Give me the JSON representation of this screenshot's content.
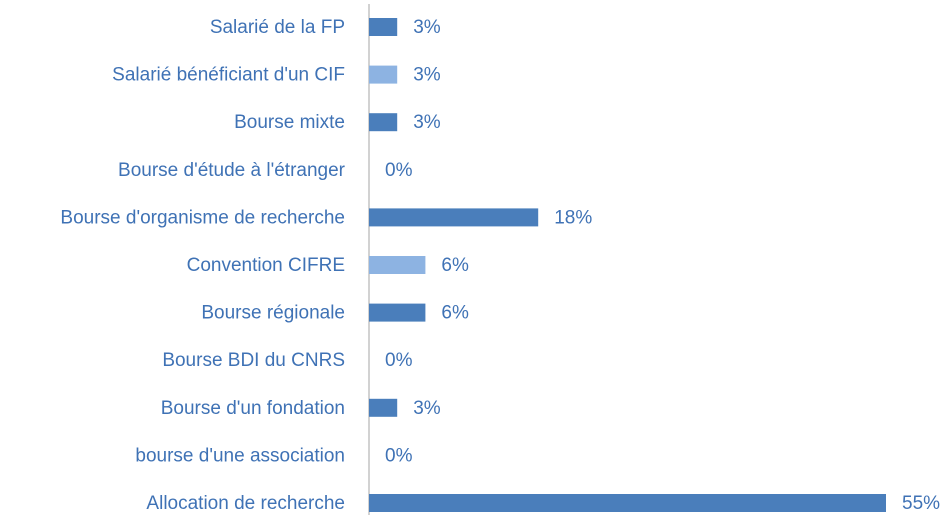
{
  "chart_data": {
    "type": "hbar",
    "categories": [
      "Salarié de la FP",
      "Salarié bénéficiant d'un CIF",
      "Bourse mixte",
      "Bourse d'étude à l'étranger",
      "Bourse d'organisme de recherche",
      "Convention CIFRE",
      "Bourse régionale",
      "Bourse BDI du CNRS",
      "Bourse d'un fondation",
      "bourse d'une association",
      "Allocation de recherche"
    ],
    "values": [
      3,
      3,
      3,
      0,
      18,
      6,
      6,
      0,
      3,
      0,
      55
    ],
    "value_labels": [
      "3%",
      "3%",
      "3%",
      "0%",
      "18%",
      "6%",
      "6%",
      "0%",
      "3%",
      "0%",
      "55%"
    ],
    "colors": [
      "#4a7ebb",
      "#8db3e2",
      "#4a7ebb",
      "#4a7ebb",
      "#4a7ebb",
      "#8db3e2",
      "#4a7ebb",
      "#4a7ebb",
      "#4a7ebb",
      "#4a7ebb",
      "#4a7ebb"
    ],
    "xlim": [
      0,
      55
    ]
  }
}
